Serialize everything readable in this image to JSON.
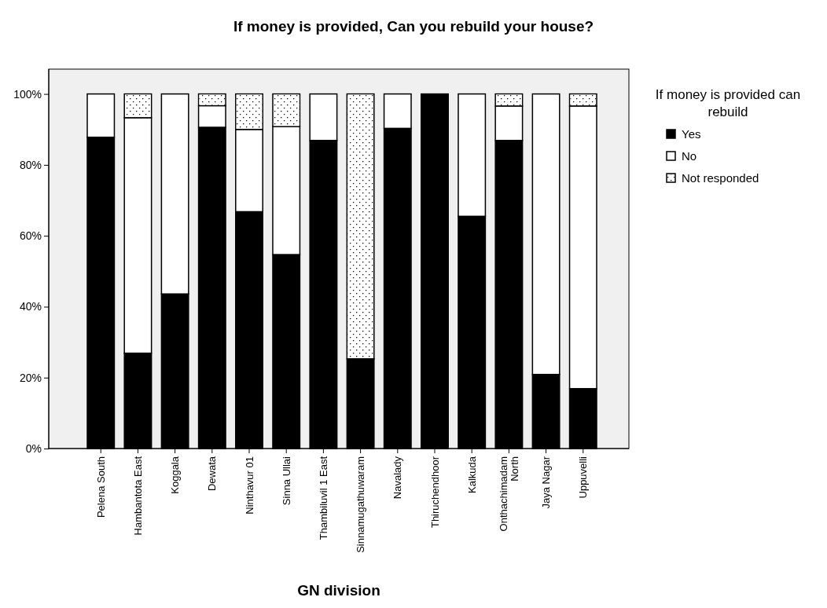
{
  "chart_data": {
    "type": "bar",
    "stacked": true,
    "title": "If money is provided, Can you rebuild your house?",
    "xlabel": "GN division",
    "legend_title": "If money is provided can rebuild",
    "legend": "top right",
    "categories": [
      "Pelena South",
      "Hambantota East",
      "Koggala",
      "Dewata",
      "Ninthavur 01",
      "Sinna Ullai",
      "Thambiluvil 1 East",
      "Sinnamugathuwaram",
      "Navalady",
      "Thiruchendhoor",
      "Kalkuda",
      "Onthachimadam North",
      "Jaya Nagar",
      "Uppuvelli"
    ],
    "series": [
      {
        "name": "Yes",
        "color": "#000000",
        "values": [
          87.8,
          26.9,
          43.6,
          90.6,
          66.8,
          54.7,
          86.9,
          25.3,
          90.3,
          100,
          65.5,
          86.9,
          20.9,
          16.9
        ]
      },
      {
        "name": "No",
        "color": "#ffffff",
        "values": [
          12.2,
          66.4,
          56.4,
          6.1,
          23.2,
          36.1,
          13.1,
          null,
          9.7,
          null,
          34.5,
          9.7,
          79.1,
          79.7
        ]
      },
      {
        "name": "Not responded",
        "color": "#ffffff",
        "values": [
          null,
          6.7,
          null,
          3.3,
          10,
          9.2,
          null,
          74.7,
          null,
          null,
          null,
          3.4,
          null,
          3.4
        ]
      }
    ],
    "ylim": [
      0,
      107
    ],
    "yticks": [
      {
        "value": 0,
        "label": "0%"
      },
      {
        "value": 20,
        "label": "20%"
      },
      {
        "value": 40,
        "label": "40%"
      },
      {
        "value": 60,
        "label": "60%"
      },
      {
        "value": 80,
        "label": "80%"
      },
      {
        "value": 100,
        "label": "100%"
      }
    ],
    "grid": false
  }
}
